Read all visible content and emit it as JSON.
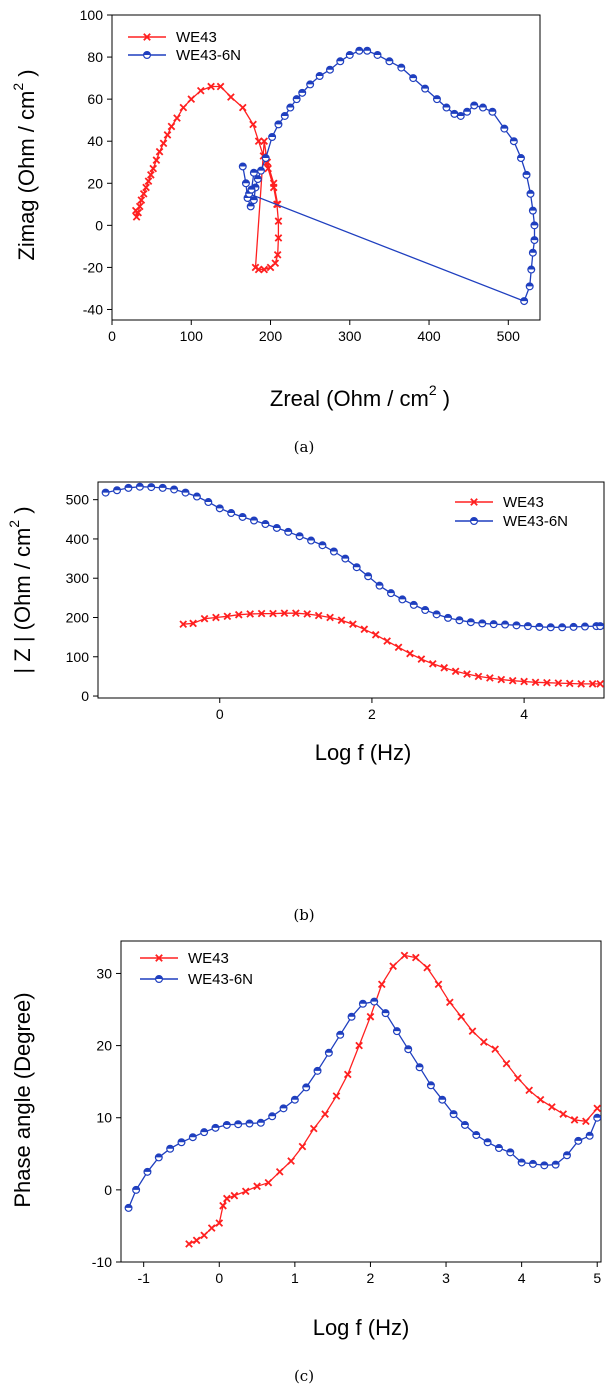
{
  "figure": {
    "captions": [
      "(a)",
      "(b)",
      "(c)"
    ]
  },
  "colors": {
    "we43": "#ff2020",
    "we43_6n": "#1f3fbf"
  },
  "chart_data": [
    {
      "id": "a",
      "type": "line",
      "title": "",
      "xlabel": "Zreal (Ohm / cm",
      "xlabel_sup": "2",
      "ylabel": "Zimag (Ohm / cm",
      "ylabel_sup": "2",
      "xlim": [
        0,
        540
      ],
      "ylim": [
        -45,
        100
      ],
      "xticks": [
        0,
        100,
        200,
        300,
        400,
        500
      ],
      "yticks": [
        -40,
        -20,
        0,
        20,
        40,
        60,
        80,
        100
      ],
      "legend_position": "top-left",
      "series": [
        {
          "name": "WE43",
          "color": "#ff2020",
          "marker": "x",
          "points": [
            [
              30,
              7
            ],
            [
              31,
              4
            ],
            [
              33,
              6
            ],
            [
              35,
              9
            ],
            [
              37,
              12
            ],
            [
              40,
              15
            ],
            [
              43,
              18
            ],
            [
              46,
              21
            ],
            [
              49,
              24
            ],
            [
              52,
              27
            ],
            [
              56,
              31
            ],
            [
              60,
              35
            ],
            [
              65,
              39
            ],
            [
              70,
              43
            ],
            [
              75,
              47
            ],
            [
              82,
              51
            ],
            [
              90,
              56
            ],
            [
              100,
              60
            ],
            [
              112,
              64
            ],
            [
              125,
              66
            ],
            [
              137,
              66
            ],
            [
              150,
              61
            ],
            [
              165,
              56
            ],
            [
              178,
              48
            ],
            [
              185,
              40
            ],
            [
              191,
              33
            ],
            [
              197,
              27
            ],
            [
              204,
              18
            ],
            [
              208,
              10
            ],
            [
              210,
              2
            ],
            [
              210,
              -6
            ],
            [
              209,
              -14
            ],
            [
              206,
              -18
            ],
            [
              200,
              -20
            ],
            [
              192,
              -21
            ],
            [
              185,
              -21
            ],
            [
              181,
              -20
            ],
            [
              192,
              40
            ],
            [
              196,
              30
            ],
            [
              204,
              20
            ],
            [
              209,
              10
            ]
          ]
        },
        {
          "name": "WE43-6N",
          "color": "#1f3fbf",
          "marker": "half-circle",
          "points": [
            [
              165,
              28
            ],
            [
              169,
              20
            ],
            [
              171,
              13
            ],
            [
              175,
              9
            ],
            [
              179,
              12
            ],
            [
              181,
              18
            ],
            [
              184,
              22
            ],
            [
              188,
              26
            ],
            [
              194,
              32
            ],
            [
              202,
              42
            ],
            [
              210,
              48
            ],
            [
              218,
              52
            ],
            [
              225,
              56
            ],
            [
              233,
              60
            ],
            [
              240,
              63
            ],
            [
              250,
              67
            ],
            [
              262,
              71
            ],
            [
              275,
              74
            ],
            [
              288,
              78
            ],
            [
              300,
              81
            ],
            [
              312,
              83
            ],
            [
              322,
              83
            ],
            [
              335,
              81
            ],
            [
              350,
              78
            ],
            [
              365,
              75
            ],
            [
              380,
              70
            ],
            [
              395,
              65
            ],
            [
              410,
              60
            ],
            [
              422,
              56
            ],
            [
              432,
              53
            ],
            [
              440,
              52
            ],
            [
              448,
              54
            ],
            [
              457,
              57
            ],
            [
              468,
              56
            ],
            [
              480,
              54
            ],
            [
              495,
              46
            ],
            [
              507,
              40
            ],
            [
              516,
              32
            ],
            [
              523,
              24
            ],
            [
              528,
              15
            ],
            [
              531,
              7
            ],
            [
              533,
              0
            ],
            [
              533,
              -7
            ],
            [
              531,
              -13
            ],
            [
              529,
              -21
            ],
            [
              527,
              -29
            ],
            [
              520,
              -36
            ],
            [
              173,
              15
            ],
            [
              176,
              17
            ],
            [
              179,
              25
            ]
          ]
        }
      ]
    },
    {
      "id": "b",
      "type": "line",
      "title": "",
      "xlabel": "Log f (Hz)",
      "ylabel": "| Z | (Ohm / cm",
      "ylabel_sup": "2",
      "xlim": [
        -1.6,
        5.05
      ],
      "ylim": [
        -5,
        545
      ],
      "xticks": [
        0,
        2,
        4
      ],
      "yticks": [
        0,
        100,
        200,
        300,
        400,
        500
      ],
      "legend_position": "top-right",
      "series": [
        {
          "name": "WE43",
          "color": "#ff2020",
          "marker": "x",
          "points": [
            [
              -0.48,
              183
            ],
            [
              -0.35,
              185
            ],
            [
              -0.2,
              197
            ],
            [
              -0.05,
              200
            ],
            [
              0.1,
              203
            ],
            [
              0.25,
              207
            ],
            [
              0.4,
              209
            ],
            [
              0.55,
              210
            ],
            [
              0.7,
              210
            ],
            [
              0.85,
              211
            ],
            [
              1.0,
              211
            ],
            [
              1.15,
              209
            ],
            [
              1.3,
              205
            ],
            [
              1.45,
              200
            ],
            [
              1.6,
              193
            ],
            [
              1.75,
              183
            ],
            [
              1.9,
              170
            ],
            [
              2.05,
              156
            ],
            [
              2.2,
              140
            ],
            [
              2.35,
              124
            ],
            [
              2.5,
              108
            ],
            [
              2.65,
              94
            ],
            [
              2.8,
              82
            ],
            [
              2.95,
              72
            ],
            [
              3.1,
              63
            ],
            [
              3.25,
              56
            ],
            [
              3.4,
              50
            ],
            [
              3.55,
              46
            ],
            [
              3.7,
              42
            ],
            [
              3.85,
              39
            ],
            [
              4.0,
              37
            ],
            [
              4.15,
              35
            ],
            [
              4.3,
              34
            ],
            [
              4.45,
              33
            ],
            [
              4.6,
              32
            ],
            [
              4.75,
              31
            ],
            [
              4.9,
              31
            ],
            [
              5.0,
              31
            ]
          ]
        },
        {
          "name": "WE43-6N",
          "color": "#1f3fbf",
          "marker": "half-circle",
          "points": [
            [
              -1.5,
              518
            ],
            [
              -1.35,
              524
            ],
            [
              -1.2,
              530
            ],
            [
              -1.05,
              533
            ],
            [
              -0.9,
              532
            ],
            [
              -0.75,
              530
            ],
            [
              -0.6,
              526
            ],
            [
              -0.45,
              518
            ],
            [
              -0.3,
              508
            ],
            [
              -0.15,
              494
            ],
            [
              0.0,
              478
            ],
            [
              0.15,
              466
            ],
            [
              0.3,
              456
            ],
            [
              0.45,
              447
            ],
            [
              0.6,
              438
            ],
            [
              0.75,
              428
            ],
            [
              0.9,
              418
            ],
            [
              1.05,
              407
            ],
            [
              1.2,
              396
            ],
            [
              1.35,
              384
            ],
            [
              1.5,
              368
            ],
            [
              1.65,
              350
            ],
            [
              1.8,
              328
            ],
            [
              1.95,
              305
            ],
            [
              2.1,
              281
            ],
            [
              2.25,
              262
            ],
            [
              2.4,
              246
            ],
            [
              2.55,
              232
            ],
            [
              2.7,
              219
            ],
            [
              2.85,
              208
            ],
            [
              3.0,
              199
            ],
            [
              3.15,
              193
            ],
            [
              3.3,
              188
            ],
            [
              3.45,
              185
            ],
            [
              3.6,
              183
            ],
            [
              3.75,
              182
            ],
            [
              3.9,
              180
            ],
            [
              4.05,
              178
            ],
            [
              4.2,
              176
            ],
            [
              4.35,
              175
            ],
            [
              4.5,
              175
            ],
            [
              4.65,
              176
            ],
            [
              4.8,
              177
            ],
            [
              4.95,
              178
            ],
            [
              5.0,
              178
            ]
          ]
        }
      ]
    },
    {
      "id": "c",
      "type": "line",
      "title": "",
      "xlabel": "Log f (Hz)",
      "ylabel": "Phase angle (Degree)",
      "xlim": [
        -1.3,
        5.05
      ],
      "ylim": [
        -10,
        34.5
      ],
      "xticks": [
        -1,
        0,
        1,
        2,
        3,
        4,
        5
      ],
      "yticks": [
        -10,
        0,
        10,
        20,
        30
      ],
      "legend_position": "top-left",
      "series": [
        {
          "name": "WE43",
          "color": "#ff2020",
          "marker": "x",
          "points": [
            [
              -0.4,
              -7.5
            ],
            [
              -0.3,
              -7
            ],
            [
              -0.2,
              -6.3
            ],
            [
              -0.1,
              -5.3
            ],
            [
              0.0,
              -4.6
            ],
            [
              0.05,
              -2.2
            ],
            [
              0.1,
              -1.2
            ],
            [
              0.2,
              -0.8
            ],
            [
              0.35,
              -0.2
            ],
            [
              0.5,
              0.5
            ],
            [
              0.65,
              1
            ],
            [
              0.8,
              2.5
            ],
            [
              0.95,
              4
            ],
            [
              1.1,
              6
            ],
            [
              1.25,
              8.5
            ],
            [
              1.4,
              10.5
            ],
            [
              1.55,
              13
            ],
            [
              1.7,
              16
            ],
            [
              1.85,
              20
            ],
            [
              2.0,
              24
            ],
            [
              2.15,
              28.5
            ],
            [
              2.3,
              31
            ],
            [
              2.45,
              32.5
            ],
            [
              2.6,
              32.2
            ],
            [
              2.75,
              30.8
            ],
            [
              2.9,
              28.5
            ],
            [
              3.05,
              26
            ],
            [
              3.2,
              24
            ],
            [
              3.35,
              22
            ],
            [
              3.5,
              20.5
            ],
            [
              3.65,
              19.5
            ],
            [
              3.8,
              17.5
            ],
            [
              3.95,
              15.5
            ],
            [
              4.1,
              13.8
            ],
            [
              4.25,
              12.5
            ],
            [
              4.4,
              11.5
            ],
            [
              4.55,
              10.5
            ],
            [
              4.7,
              9.7
            ],
            [
              4.85,
              9.5
            ],
            [
              5.0,
              11.3
            ]
          ]
        },
        {
          "name": "WE43-6N",
          "color": "#1f3fbf",
          "marker": "half-circle",
          "points": [
            [
              -1.2,
              -2.5
            ],
            [
              -1.1,
              0
            ],
            [
              -0.95,
              2.5
            ],
            [
              -0.8,
              4.5
            ],
            [
              -0.65,
              5.7
            ],
            [
              -0.5,
              6.6
            ],
            [
              -0.35,
              7.3
            ],
            [
              -0.2,
              8.0
            ],
            [
              -0.05,
              8.6
            ],
            [
              0.1,
              9.0
            ],
            [
              0.25,
              9.1
            ],
            [
              0.4,
              9.2
            ],
            [
              0.55,
              9.3
            ],
            [
              0.7,
              10.2
            ],
            [
              0.85,
              11.3
            ],
            [
              1.0,
              12.5
            ],
            [
              1.15,
              14.2
            ],
            [
              1.3,
              16.5
            ],
            [
              1.45,
              19
            ],
            [
              1.6,
              21.5
            ],
            [
              1.75,
              24
            ],
            [
              1.9,
              25.8
            ],
            [
              2.05,
              26.1
            ],
            [
              2.2,
              24.5
            ],
            [
              2.35,
              22
            ],
            [
              2.5,
              19.5
            ],
            [
              2.65,
              17
            ],
            [
              2.8,
              14.5
            ],
            [
              2.95,
              12.5
            ],
            [
              3.1,
              10.5
            ],
            [
              3.25,
              9
            ],
            [
              3.4,
              7.6
            ],
            [
              3.55,
              6.6
            ],
            [
              3.7,
              5.8
            ],
            [
              3.85,
              5.2
            ],
            [
              4.0,
              3.8
            ],
            [
              4.15,
              3.6
            ],
            [
              4.3,
              3.4
            ],
            [
              4.45,
              3.5
            ],
            [
              4.6,
              4.8
            ],
            [
              4.75,
              6.8
            ],
            [
              4.9,
              7.5
            ],
            [
              5.0,
              10
            ]
          ]
        }
      ]
    }
  ]
}
